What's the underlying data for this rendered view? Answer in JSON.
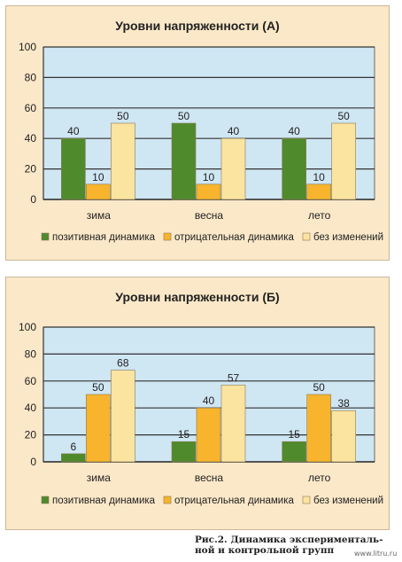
{
  "chart_data": [
    {
      "type": "bar",
      "title": "Уровни напряженности (А)",
      "categories": [
        "зима",
        "весна",
        "лето"
      ],
      "series": [
        {
          "name": "позитивная динамика",
          "values": [
            40,
            50,
            40
          ],
          "color": "#4f8a2c"
        },
        {
          "name": "отрицательная динамика",
          "values": [
            10,
            10,
            10
          ],
          "color": "#f7b42c"
        },
        {
          "name": "без изменений",
          "values": [
            50,
            40,
            50
          ],
          "color": "#fbe3a0"
        }
      ],
      "yticks": [
        "0",
        "20",
        "40",
        "60",
        "80",
        "100"
      ],
      "ylim": [
        0,
        100
      ],
      "grid": true,
      "legend": "bottom",
      "plot_bg": "#cfe6f3"
    },
    {
      "type": "bar",
      "title": "Уровни напряженности (Б)",
      "categories": [
        "зима",
        "весна",
        "лето"
      ],
      "series": [
        {
          "name": "позитивная динамика",
          "values": [
            6,
            15,
            15
          ],
          "color": "#4f8a2c"
        },
        {
          "name": "отрицательная динамика",
          "values": [
            50,
            40,
            50
          ],
          "color": "#f7b42c"
        },
        {
          "name": "без изменений",
          "values": [
            68,
            57,
            38
          ],
          "color": "#fbe3a0"
        }
      ],
      "yticks": [
        "0",
        "20",
        "40",
        "60",
        "80",
        "100"
      ],
      "ylim": [
        0,
        100
      ],
      "grid": true,
      "legend": "bottom",
      "plot_bg": "#cfe6f3"
    }
  ],
  "caption": {
    "line1": "Рис.2. Динамика эксперименталь-",
    "line2": "ной и контрольной групп"
  },
  "watermark": "www.litru.ru"
}
